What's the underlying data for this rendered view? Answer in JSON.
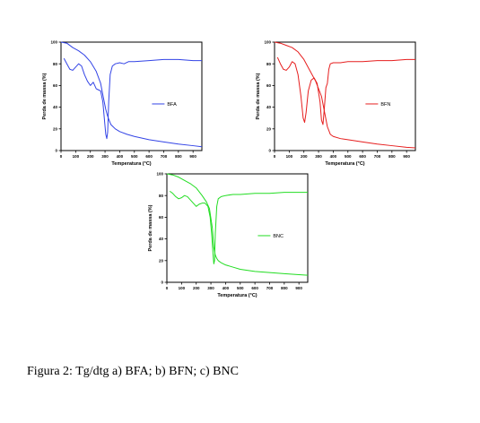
{
  "caption": "Figura 2: Tg/dtg a) BFA; b) BFN; c) BNC",
  "chart_data": [
    {
      "type": "line",
      "xlabel": "Temperatura (°C)",
      "ylabel": "Perda de massa (%)",
      "xlim": [
        0,
        960
      ],
      "ylim": [
        0,
        100
      ],
      "xticks": [
        0,
        100,
        200,
        300,
        400,
        500,
        600,
        700,
        800,
        900
      ],
      "yticks": [
        0,
        20,
        40,
        60,
        80,
        100
      ],
      "legend_position": "right-middle",
      "color": "#3344e6",
      "series": [
        {
          "name": "BFA",
          "role": "tg",
          "x": [
            0,
            40,
            80,
            120,
            160,
            200,
            240,
            270,
            290,
            305,
            315,
            325,
            340,
            370,
            400,
            450,
            500,
            600,
            700,
            800,
            900,
            960
          ],
          "y": [
            100,
            99,
            95,
            92,
            88,
            82,
            73,
            62,
            48,
            38,
            33,
            29,
            24,
            20,
            17.5,
            15,
            13,
            10,
            8,
            6,
            4.5,
            3.5
          ]
        },
        {
          "name": "",
          "role": "dtg",
          "x": [
            20,
            40,
            60,
            80,
            100,
            120,
            140,
            160,
            180,
            200,
            220,
            240,
            255,
            270,
            285,
            295,
            305,
            312,
            318,
            325,
            335,
            350,
            370,
            400,
            430,
            460,
            500,
            600,
            700,
            800,
            900,
            960
          ],
          "y": [
            85,
            80,
            75,
            74,
            77,
            80,
            78,
            70,
            64,
            60,
            63,
            57,
            56,
            55,
            45,
            30,
            15,
            11,
            17,
            45,
            70,
            78,
            80,
            81,
            80,
            82,
            82,
            83,
            84,
            84,
            83,
            83
          ]
        }
      ]
    },
    {
      "type": "line",
      "xlabel": "Temperatura (°C)",
      "ylabel": "Perda de massa (%)",
      "xlim": [
        0,
        960
      ],
      "ylim": [
        0,
        100
      ],
      "xticks": [
        0,
        100,
        200,
        300,
        400,
        500,
        600,
        700,
        800,
        900
      ],
      "yticks": [
        0,
        20,
        40,
        60,
        80,
        100
      ],
      "legend_position": "right-middle",
      "color": "#e61e1e",
      "series": [
        {
          "name": "BFN",
          "role": "tg",
          "x": [
            0,
            40,
            80,
            120,
            160,
            200,
            240,
            280,
            320,
            340,
            360,
            380,
            400,
            450,
            500,
            600,
            700,
            800,
            900,
            960
          ],
          "y": [
            100,
            99,
            97,
            95,
            91,
            84,
            74,
            64,
            50,
            36,
            22,
            15,
            13,
            11,
            10,
            8,
            6,
            4.5,
            3,
            2.5
          ]
        },
        {
          "name": "",
          "role": "dtg",
          "x": [
            20,
            40,
            60,
            80,
            100,
            120,
            140,
            160,
            180,
            195,
            205,
            215,
            230,
            250,
            270,
            290,
            310,
            320,
            330,
            340,
            350,
            360,
            370,
            380,
            400,
            450,
            500,
            600,
            700,
            800,
            900,
            960
          ],
          "y": [
            86,
            80,
            75,
            74,
            77,
            82,
            80,
            70,
            50,
            30,
            26,
            35,
            55,
            65,
            67,
            62,
            45,
            28,
            24,
            40,
            58,
            62,
            75,
            80,
            81,
            81,
            82,
            82,
            83,
            83,
            84,
            84
          ]
        }
      ]
    },
    {
      "type": "line",
      "xlabel": "Temperatura (°C)",
      "ylabel": "Perda de massa (%)",
      "xlim": [
        0,
        960
      ],
      "ylim": [
        0,
        100
      ],
      "xticks": [
        0,
        100,
        200,
        300,
        400,
        500,
        600,
        700,
        800,
        900
      ],
      "yticks": [
        0,
        20,
        40,
        60,
        80,
        100
      ],
      "legend_position": "right-middle",
      "color": "#22dd22",
      "series": [
        {
          "name": "BNC",
          "role": "tg",
          "x": [
            0,
            40,
            80,
            120,
            160,
            200,
            240,
            270,
            290,
            310,
            320,
            330,
            340,
            350,
            370,
            400,
            450,
            500,
            600,
            700,
            800,
            900,
            960
          ],
          "y": [
            100,
            99,
            97,
            94,
            91,
            87,
            80,
            74,
            68,
            50,
            32,
            25,
            22,
            20,
            18,
            16,
            14,
            12,
            10,
            9,
            8,
            7,
            6.5
          ]
        },
        {
          "name": "",
          "role": "dtg",
          "x": [
            20,
            40,
            60,
            80,
            100,
            120,
            140,
            160,
            180,
            200,
            220,
            240,
            260,
            280,
            295,
            305,
            315,
            320,
            325,
            330,
            340,
            350,
            370,
            400,
            450,
            500,
            600,
            700,
            800,
            900,
            960
          ],
          "y": [
            84,
            82,
            79,
            77,
            78,
            80,
            79,
            76,
            73,
            70,
            72,
            73,
            73,
            70,
            60,
            45,
            25,
            17,
            20,
            45,
            70,
            77,
            79,
            80,
            81,
            81,
            82,
            82,
            83,
            83,
            83
          ]
        }
      ]
    }
  ]
}
